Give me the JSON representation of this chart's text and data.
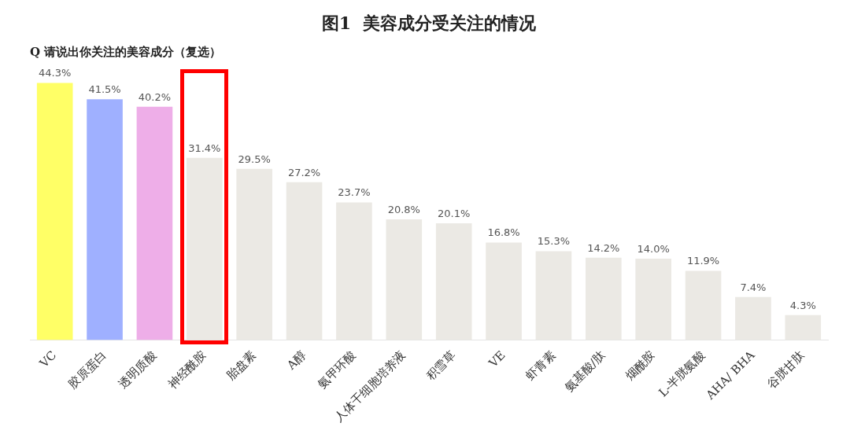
{
  "chart_data": {
    "type": "bar",
    "title": "图1  美容成分受关注的情况",
    "subtitle": "Q 请说出你关注的美容成分（复选）",
    "categories": [
      "VC",
      "胶原蛋白",
      "透明质酸",
      "神经酰胺",
      "胎盘素",
      "A醇",
      "氨甲环酸",
      "人体干细胞培养液",
      "积雪草",
      "VE",
      "虾青素",
      "氨基酸/肽",
      "烟酰胺",
      "L-半胱氨酸",
      "AHA/ BHA",
      "谷胱甘肽"
    ],
    "values": [
      44.3,
      41.5,
      40.2,
      31.4,
      29.5,
      27.2,
      23.7,
      20.8,
      20.1,
      16.8,
      15.3,
      14.2,
      14.0,
      11.9,
      7.4,
      4.3
    ],
    "value_labels": [
      "44.3%",
      "41.5%",
      "40.2%",
      "31.4%",
      "29.5%",
      "27.2%",
      "23.7%",
      "20.8%",
      "20.1%",
      "16.8%",
      "15.3%",
      "14.2%",
      "14.0%",
      "11.9%",
      "7.4%",
      "4.3%"
    ],
    "colors": [
      "#ffff66",
      "#9fb0ff",
      "#eeaee8",
      "#ebe9e4",
      "#ebe9e4",
      "#ebe9e4",
      "#ebe9e4",
      "#ebe9e4",
      "#ebe9e4",
      "#ebe9e4",
      "#ebe9e4",
      "#ebe9e4",
      "#ebe9e4",
      "#ebe9e4",
      "#ebe9e4",
      "#ebe9e4"
    ],
    "grid": false,
    "legend": false
  }
}
